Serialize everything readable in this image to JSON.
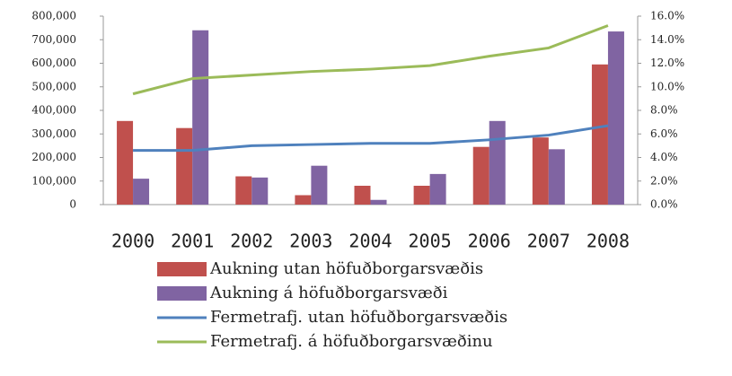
{
  "chart_data": {
    "type": "bar",
    "categories": [
      "2000",
      "2001",
      "2002",
      "2003",
      "2004",
      "2005",
      "2006",
      "2007",
      "2008"
    ],
    "series": [
      {
        "name": "Aukning utan höfuðborgarsvæðis",
        "type": "bar",
        "color": "#c0504d",
        "values": [
          355000,
          325000,
          120000,
          40000,
          80000,
          80000,
          245000,
          285000,
          595000
        ]
      },
      {
        "name": "Aukning á höfuðborgarsvæði",
        "type": "bar",
        "color": "#8064a2",
        "values": [
          110000,
          740000,
          115000,
          165000,
          20000,
          130000,
          355000,
          235000,
          735000
        ]
      },
      {
        "name": "Fermetrafj. utan höfuðborgarsvæðis",
        "type": "line",
        "axis": "y2",
        "color": "#4f81bd",
        "values": [
          4.6,
          4.6,
          5.0,
          5.1,
          5.2,
          5.2,
          5.5,
          5.9,
          6.7
        ]
      },
      {
        "name": "Fermetrafj. á höfuðborgarsvæðinu",
        "type": "line",
        "axis": "y2",
        "color": "#9bbb59",
        "values": [
          9.4,
          10.7,
          11.0,
          11.3,
          11.5,
          11.8,
          12.6,
          13.3,
          15.2
        ]
      }
    ],
    "ylim": [
      0,
      800000
    ],
    "yticks": [
      0,
      {
        "value": 100000,
        "label": "100,000"
      },
      {
        "value": 200000,
        "label": "200,000"
      },
      {
        "value": 300000,
        "label": "300,000"
      },
      {
        "value": 400000,
        "label": "400,000"
      },
      {
        "value": 500000,
        "label": "500,000"
      },
      {
        "value": 600000,
        "label": "600,000"
      },
      {
        "value": 700000,
        "label": "700,000"
      },
      {
        "value": 800000,
        "label": "800,000"
      }
    ],
    "y2lim": [
      0,
      16
    ],
    "y2ticks": [
      {
        "value": 0,
        "label": "0.0%"
      },
      {
        "value": 2,
        "label": "2.0%"
      },
      {
        "value": 4,
        "label": "4.0%"
      },
      {
        "value": 6,
        "label": "6.0%"
      },
      {
        "value": 8,
        "label": "8.0%"
      },
      {
        "value": 10,
        "label": "10.0%"
      },
      {
        "value": 12,
        "label": "12.0%"
      },
      {
        "value": 14,
        "label": "14.0%"
      },
      {
        "value": 16,
        "label": "16.0%"
      }
    ],
    "grid": false,
    "legend": "bottom"
  }
}
